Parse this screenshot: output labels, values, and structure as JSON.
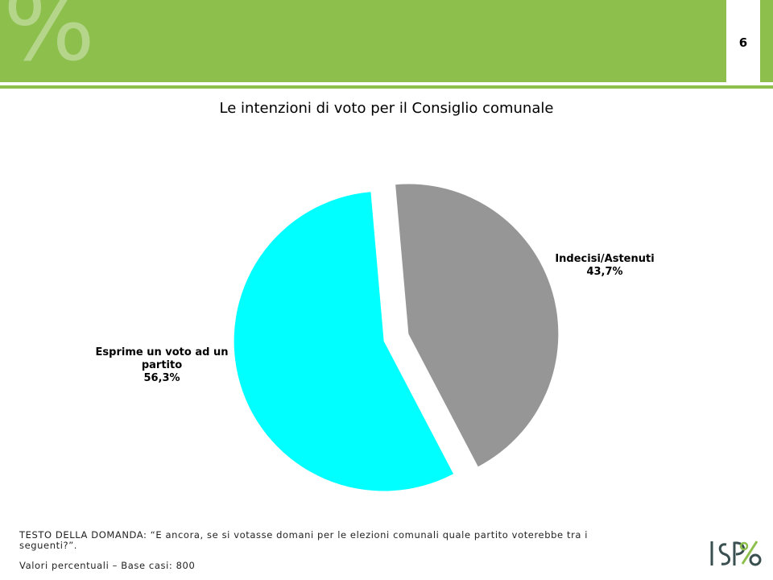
{
  "header": {
    "watermark": "%",
    "page_number": "6",
    "band_color": "#8cbf4c"
  },
  "chart_data": {
    "type": "pie",
    "title": "Le intenzioni di voto per il Consiglio comunale",
    "slices": [
      {
        "name": "Indecisi/Astenuti",
        "value": 43.7,
        "label": "43,7%",
        "color": "#969696",
        "exploded": true
      },
      {
        "name": "Esprime un voto ad un partito",
        "value": 56.3,
        "label": "56,3%",
        "color": "#00ffff",
        "exploded": true
      }
    ]
  },
  "footer": {
    "question": "TESTO DELLA DOMANDA: “E ancora, se si votasse domani per le elezioni comunali quale partito voterebbe tra i seguenti?”.",
    "base": "Valori percentuali – Base casi: 800"
  },
  "logo": {
    "text": "ISPO"
  }
}
